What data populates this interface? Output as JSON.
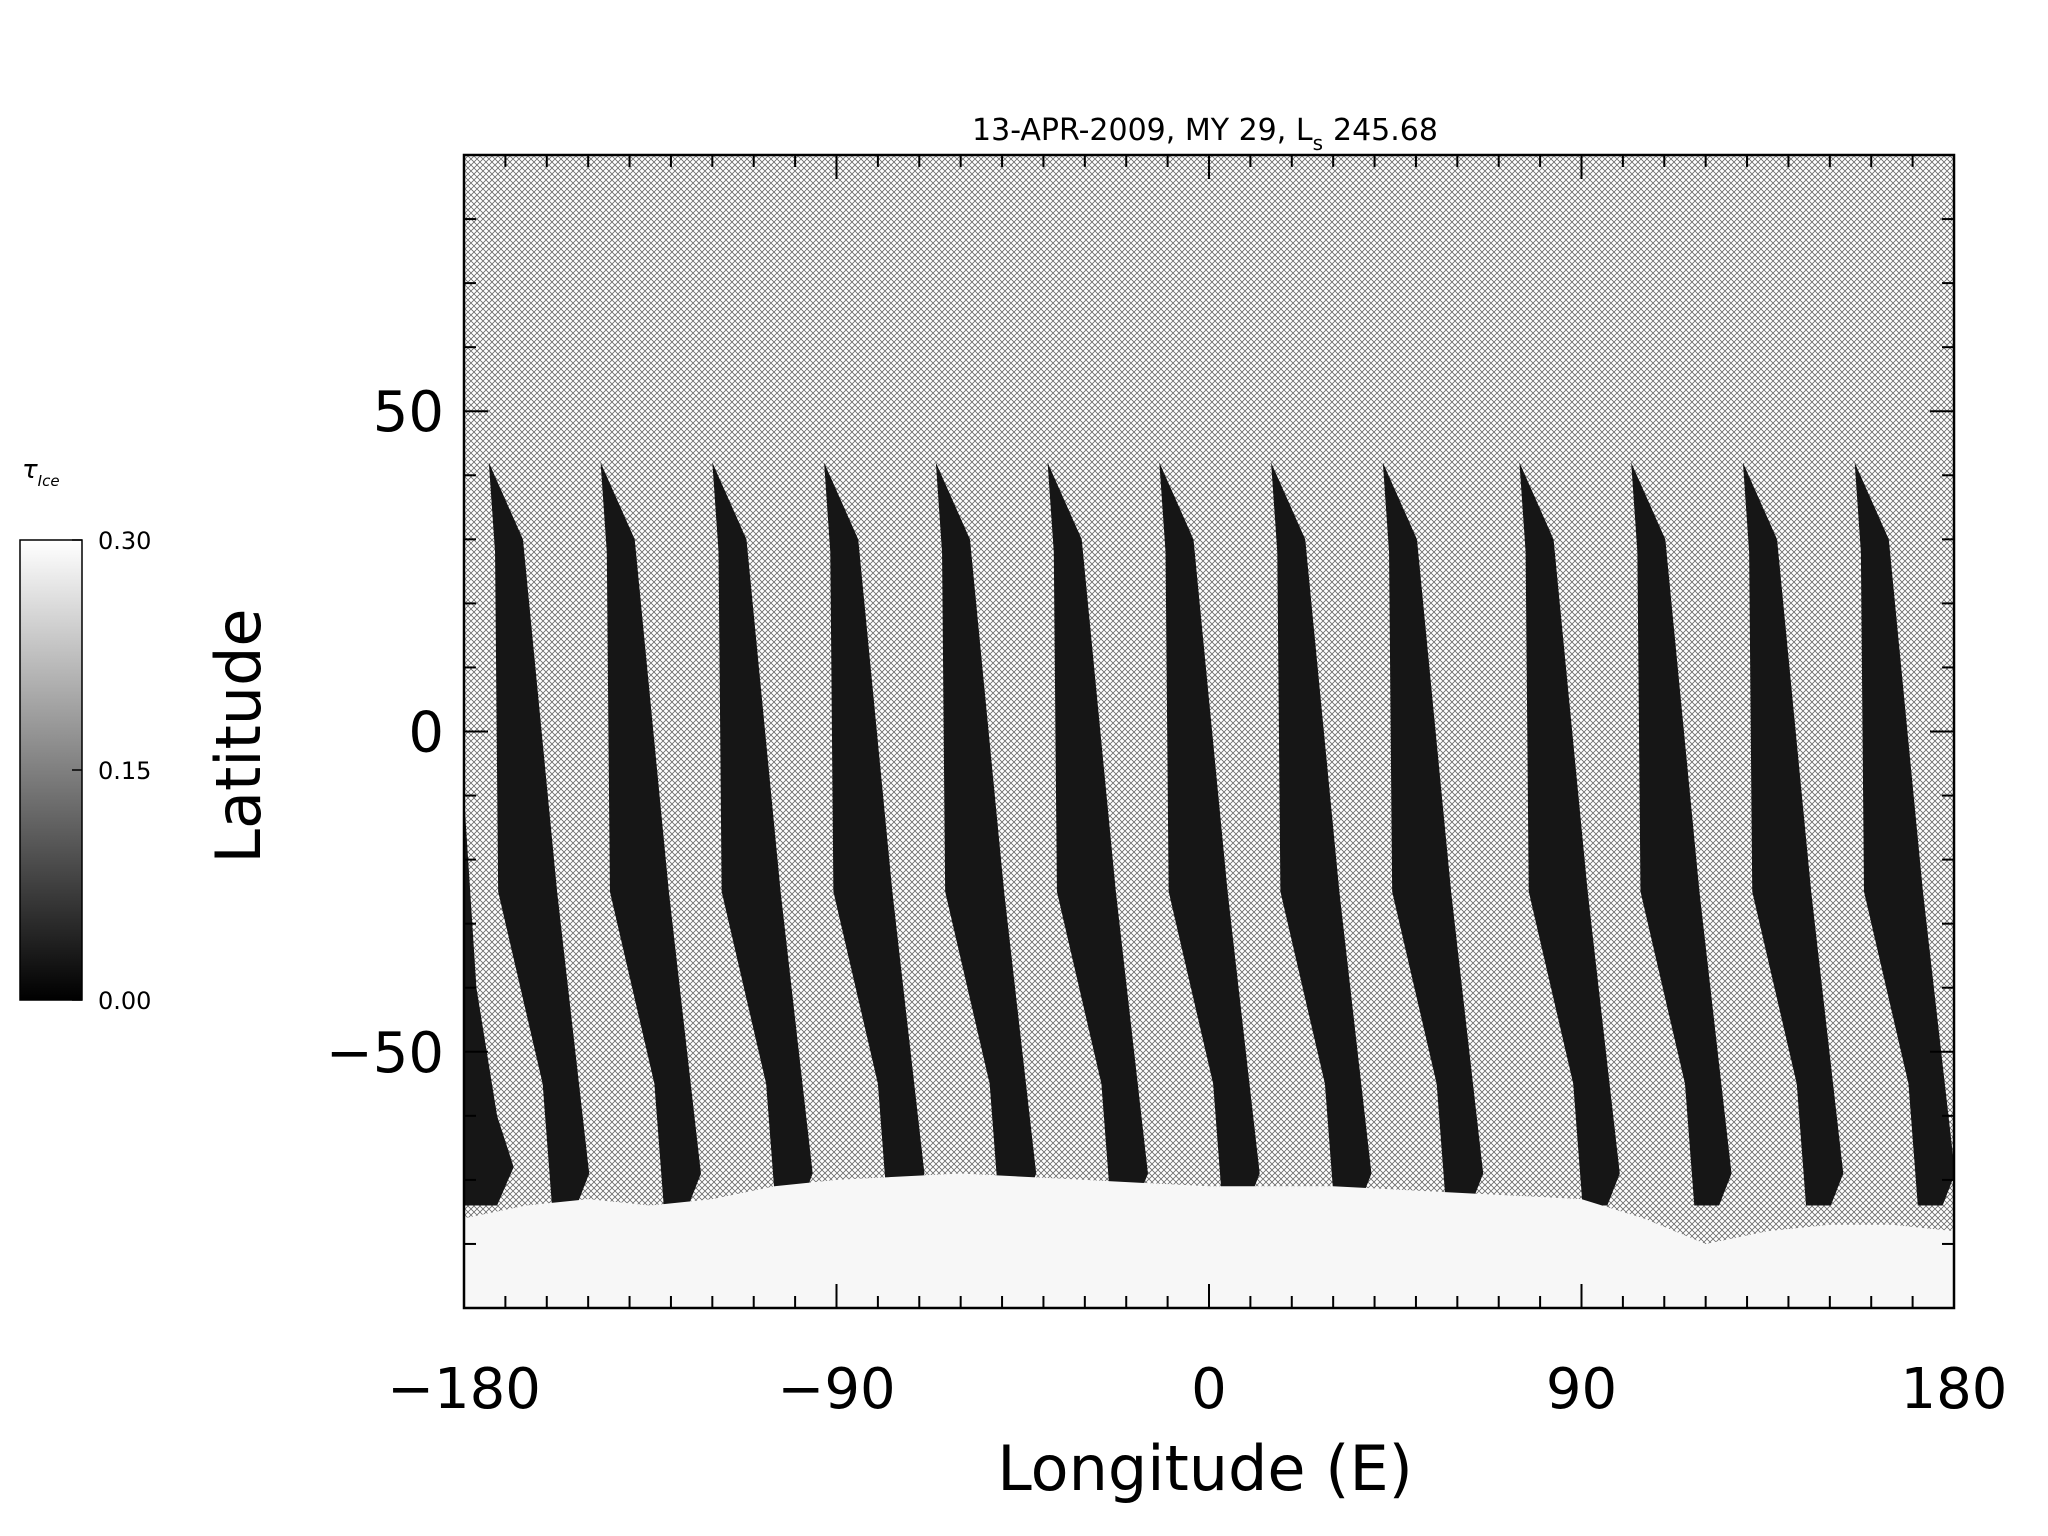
{
  "chart_data": {
    "type": "heatmap",
    "title": "13-APR-2009, MY 29,  L",
    "title_subscript": "s",
    "title_value": "245.68",
    "xlabel": "Longitude (E)",
    "ylabel": "Latitude",
    "xlim": [
      -180,
      180
    ],
    "ylim": [
      -90,
      90
    ],
    "x_ticks": [
      {
        "value": -180,
        "label": "−180"
      },
      {
        "value": -90,
        "label": "−90"
      },
      {
        "value": 0,
        "label": "0"
      },
      {
        "value": 90,
        "label": "90"
      },
      {
        "value": 180,
        "label": "180"
      }
    ],
    "y_ticks": [
      {
        "value": -50,
        "label": "−50"
      },
      {
        "value": 0,
        "label": "0"
      },
      {
        "value": 50,
        "label": "50"
      }
    ],
    "x_minor_step": 10,
    "y_minor_step": 10,
    "colorbar": {
      "label": "τ",
      "label_subscript": "Ice",
      "min": 0.0,
      "max": 0.3,
      "ticks": [
        {
          "value": 0.3,
          "label": "0.30"
        },
        {
          "value": 0.15,
          "label": "0.15"
        },
        {
          "value": 0.0,
          "label": "0.00"
        }
      ],
      "colormap": "grayscale"
    },
    "no_data_pattern": "crosshatch",
    "swaths": [
      {
        "lon_top": -174,
        "lon_mid": -165,
        "lon_bot": -158
      },
      {
        "lon_top": -147,
        "lon_mid": -138,
        "lon_bot": -131
      },
      {
        "lon_top": -120,
        "lon_mid": -111,
        "lon_bot": -104
      },
      {
        "lon_top": -93,
        "lon_mid": -84,
        "lon_bot": -77
      },
      {
        "lon_top": -66,
        "lon_mid": -57,
        "lon_bot": -50
      },
      {
        "lon_top": -39,
        "lon_mid": -30,
        "lon_bot": -23
      },
      {
        "lon_top": -12,
        "lon_mid": -3,
        "lon_bot": 4
      },
      {
        "lon_top": 15,
        "lon_mid": 24,
        "lon_bot": 31
      },
      {
        "lon_top": 42,
        "lon_mid": 51,
        "lon_bot": 58
      },
      {
        "lon_top": 75,
        "lon_mid": 84,
        "lon_bot": 91
      },
      {
        "lon_top": 102,
        "lon_mid": 111,
        "lon_bot": 118
      },
      {
        "lon_top": 129,
        "lon_mid": 138,
        "lon_bot": 145
      },
      {
        "lon_top": 156,
        "lon_mid": 165,
        "lon_bot": 172
      }
    ],
    "swath_width_deg": 15,
    "swath_lat_top": 42,
    "swath_lat_bottom": -72,
    "polar_cap_edge": [
      [
        -180,
        -76
      ],
      [
        -165,
        -74
      ],
      [
        -150,
        -73
      ],
      [
        -135,
        -74
      ],
      [
        -120,
        -73
      ],
      [
        -105,
        -71
      ],
      [
        -90,
        -70
      ],
      [
        -60,
        -69
      ],
      [
        -30,
        -70
      ],
      [
        0,
        -71
      ],
      [
        30,
        -71
      ],
      [
        60,
        -72
      ],
      [
        90,
        -73
      ],
      [
        105,
        -76
      ],
      [
        120,
        -80
      ],
      [
        135,
        -78
      ],
      [
        150,
        -77
      ],
      [
        165,
        -77
      ],
      [
        180,
        -78
      ]
    ],
    "polar_cap_value": 0.3
  }
}
